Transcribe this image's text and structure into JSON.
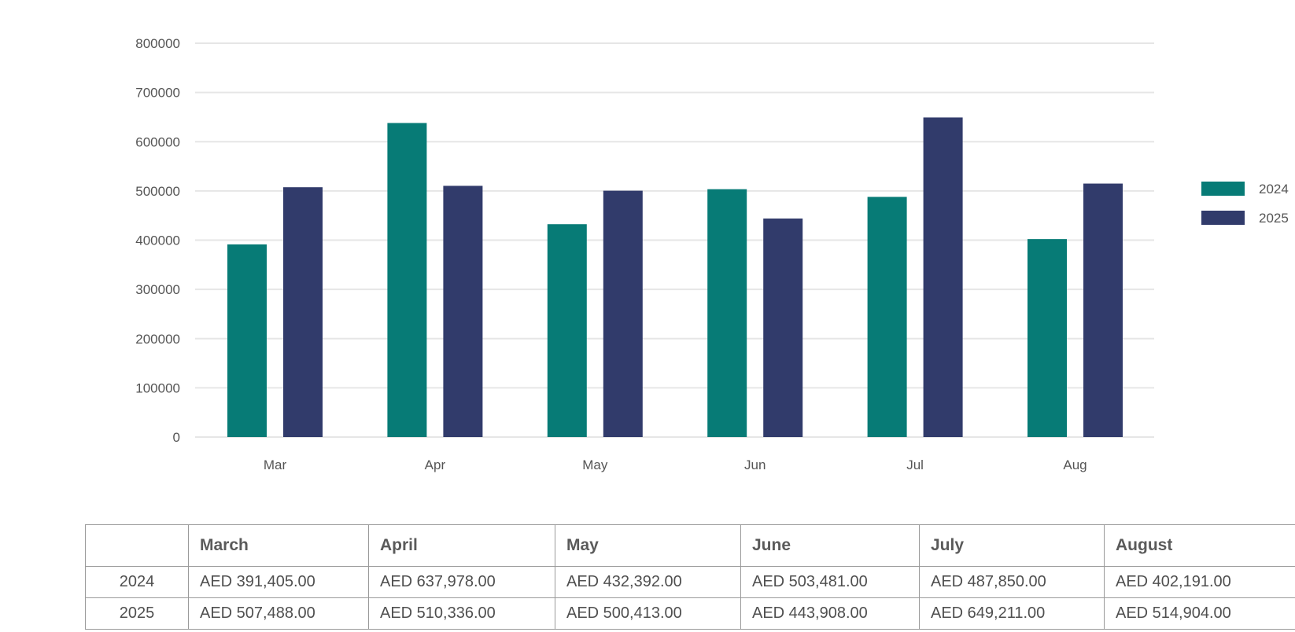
{
  "colors": {
    "2024": "#077b76",
    "2025": "#313b6b",
    "grid": "#e6e6e6"
  },
  "chart_data": {
    "type": "bar",
    "categories": [
      "Mar",
      "Apr",
      "May",
      "Jun",
      "Jul",
      "Aug"
    ],
    "series": [
      {
        "name": "2024",
        "values": [
          391405,
          637978,
          432392,
          503481,
          487850,
          402191
        ]
      },
      {
        "name": "2025",
        "values": [
          507488,
          510336,
          500413,
          443908,
          649211,
          514904
        ]
      }
    ],
    "y_ticks": [
      "0",
      "100000",
      "200000",
      "300000",
      "400000",
      "500000",
      "600000",
      "700000",
      "800000"
    ],
    "ylim": [
      0,
      800000
    ],
    "grid": true,
    "legend": "right"
  },
  "table": {
    "header": [
      "",
      "March",
      "April",
      "May",
      "June",
      "July",
      "August"
    ],
    "rows": [
      {
        "label": "2024",
        "cells": [
          "AED 391,405.00",
          "AED 637,978.00",
          "AED 432,392.00",
          "AED 503,481.00",
          "AED 487,850.00",
          "AED 402,191.00"
        ]
      },
      {
        "label": "2025",
        "cells": [
          "AED 507,488.00",
          "AED 510,336.00",
          "AED 500,413.00",
          "AED 443,908.00",
          "AED 649,211.00",
          "AED 514,904.00"
        ]
      }
    ]
  }
}
